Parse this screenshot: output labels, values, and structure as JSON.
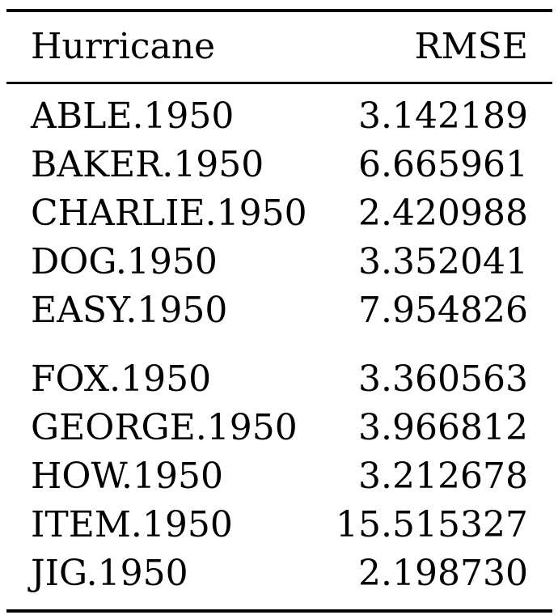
{
  "table": {
    "headers": {
      "name": "Hurricane",
      "value": "RMSE"
    },
    "groups": [
      [
        {
          "name": "ABLE.1950",
          "rmse": "3.142189"
        },
        {
          "name": "BAKER.1950",
          "rmse": "6.665961"
        },
        {
          "name": "CHARLIE.1950",
          "rmse": "2.420988"
        },
        {
          "name": "DOG.1950",
          "rmse": "3.352041"
        },
        {
          "name": "EASY.1950",
          "rmse": "7.954826"
        }
      ],
      [
        {
          "name": "FOX.1950",
          "rmse": "3.360563"
        },
        {
          "name": "GEORGE.1950",
          "rmse": "3.966812"
        },
        {
          "name": "HOW.1950",
          "rmse": "3.212678"
        },
        {
          "name": "ITEM.1950",
          "rmse": "15.515327"
        },
        {
          "name": "JIG.1950",
          "rmse": "2.198730"
        }
      ]
    ]
  }
}
